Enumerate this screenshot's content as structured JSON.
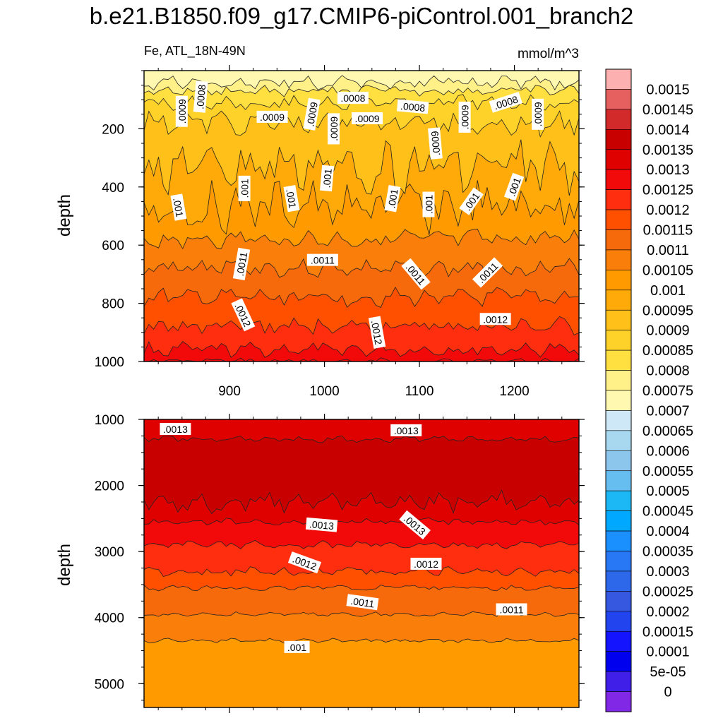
{
  "title": "b.e21.B1850.f09_g17.CMIP6-piControl.001_branch2",
  "variable_label": "Fe, ATL_18N-49N",
  "units_label": "mmol/m^3",
  "chart_data": [
    {
      "type": "heatmap",
      "panel": "upper",
      "ylabel": "depth",
      "xlabel": "",
      "xlim": [
        810,
        1268
      ],
      "ylim": [
        1000,
        0
      ],
      "x_ticks": [
        900,
        1000,
        1100,
        1200
      ],
      "y_ticks": [
        200,
        400,
        600,
        800,
        1000
      ],
      "contour_bands": [
        {
          "depth_boundary": 40,
          "above_value": 0.0007
        },
        {
          "depth_boundary": 70,
          "above_value": 0.00075
        },
        {
          "depth_boundary": 110,
          "above_value": 0.0008
        },
        {
          "depth_boundary": 180,
          "above_value": 0.00085
        },
        {
          "depth_boundary": 330,
          "above_value": 0.0009
        },
        {
          "depth_boundary": 470,
          "above_value": 0.00095
        },
        {
          "depth_boundary": 580,
          "above_value": 0.001
        },
        {
          "depth_boundary": 680,
          "above_value": 0.00105
        },
        {
          "depth_boundary": 780,
          "above_value": 0.0011
        },
        {
          "depth_boundary": 880,
          "above_value": 0.00115
        },
        {
          "depth_boundary": 960,
          "above_value": 0.0012
        },
        {
          "depth_boundary": 1000,
          "above_value": 0.00125
        }
      ],
      "contour_labels": [
        {
          "text": ".0008",
          "x": 870,
          "depth": 90,
          "angle": -85
        },
        {
          "text": ".0009",
          "x": 850,
          "depth": 140,
          "angle": -90
        },
        {
          "text": ".0009",
          "x": 945,
          "depth": 160,
          "angle": 0
        },
        {
          "text": ".0009",
          "x": 987,
          "depth": 150,
          "angle": -80
        },
        {
          "text": ".0008",
          "x": 1030,
          "depth": 95,
          "angle": 0
        },
        {
          "text": ".0009",
          "x": 1010,
          "depth": 200,
          "angle": -90
        },
        {
          "text": ".0009",
          "x": 1045,
          "depth": 165,
          "angle": 0
        },
        {
          "text": ".0008",
          "x": 1093,
          "depth": 125,
          "angle": 5
        },
        {
          "text": ".0009",
          "x": 1117,
          "depth": 250,
          "angle": -95
        },
        {
          "text": ".0009",
          "x": 1148,
          "depth": 160,
          "angle": -90
        },
        {
          "text": ".0008",
          "x": 1191,
          "depth": 110,
          "angle": -18
        },
        {
          "text": ".0009",
          "x": 1225,
          "depth": 150,
          "angle": -90
        },
        {
          "text": ".001",
          "x": 846,
          "depth": 470,
          "angle": 80
        },
        {
          "text": ".001",
          "x": 916,
          "depth": 405,
          "angle": -90
        },
        {
          "text": ".001",
          "x": 965,
          "depth": 440,
          "angle": 80
        },
        {
          "text": ".001",
          "x": 1003,
          "depth": 370,
          "angle": -85
        },
        {
          "text": ".001",
          "x": 1072,
          "depth": 440,
          "angle": -80
        },
        {
          "text": ".001",
          "x": 1110,
          "depth": 460,
          "angle": -90
        },
        {
          "text": ".001",
          "x": 1155,
          "depth": 450,
          "angle": -55
        },
        {
          "text": ".001",
          "x": 1200,
          "depth": 400,
          "angle": -70
        },
        {
          "text": ".0011",
          "x": 913,
          "depth": 665,
          "angle": -80
        },
        {
          "text": ".0011",
          "x": 998,
          "depth": 652,
          "angle": 0
        },
        {
          "text": ".0011",
          "x": 1096,
          "depth": 700,
          "angle": 50
        },
        {
          "text": ".0011",
          "x": 1172,
          "depth": 695,
          "angle": -45
        },
        {
          "text": ".0012",
          "x": 914,
          "depth": 840,
          "angle": 65
        },
        {
          "text": ".0012",
          "x": 1055,
          "depth": 900,
          "angle": 80
        },
        {
          "text": ".0012",
          "x": 1180,
          "depth": 855,
          "angle": 0
        }
      ]
    },
    {
      "type": "heatmap",
      "panel": "lower",
      "ylabel": "depth",
      "xlabel": "",
      "xlim": [
        810,
        1268
      ],
      "ylim": [
        5360,
        1000
      ],
      "x_ticks": [
        900,
        1000,
        1100,
        1200
      ],
      "y_ticks": [
        1000,
        2000,
        3000,
        4000,
        5000
      ],
      "contour_bands": [
        {
          "depth_boundary": 1300,
          "above_value": 0.0013
        },
        {
          "depth_boundary": 2250,
          "above_value": 0.00135
        },
        {
          "depth_boundary": 2550,
          "above_value": 0.0013
        },
        {
          "depth_boundary": 2900,
          "above_value": 0.00125
        },
        {
          "depth_boundary": 3300,
          "above_value": 0.0012
        },
        {
          "depth_boundary": 3550,
          "above_value": 0.00115
        },
        {
          "depth_boundary": 3950,
          "above_value": 0.0011
        },
        {
          "depth_boundary": 4350,
          "above_value": 0.00105
        },
        {
          "depth_boundary": 5360,
          "above_value": 0.001
        }
      ],
      "contour_labels": [
        {
          "text": ".0013",
          "x": 843,
          "depth": 1150,
          "angle": 0
        },
        {
          "text": ".0013",
          "x": 1086,
          "depth": 1170,
          "angle": 0
        },
        {
          "text": ".0013",
          "x": 997,
          "depth": 2600,
          "angle": 5
        },
        {
          "text": ".0013",
          "x": 1095,
          "depth": 2600,
          "angle": 40
        },
        {
          "text": ".0012",
          "x": 979,
          "depth": 3170,
          "angle": 20
        },
        {
          "text": ".0012",
          "x": 1107,
          "depth": 3190,
          "angle": 0
        },
        {
          "text": ".0011",
          "x": 1040,
          "depth": 3770,
          "angle": 8
        },
        {
          "text": ".0011",
          "x": 1197,
          "depth": 3880,
          "angle": 0
        },
        {
          "text": ".001",
          "x": 971,
          "depth": 4450,
          "angle": 0
        }
      ]
    }
  ],
  "colorbar": {
    "labels": [
      "0.0015",
      "0.00145",
      "0.0014",
      "0.00135",
      "0.0013",
      "0.00125",
      "0.0012",
      "0.00115",
      "0.0011",
      "0.00105",
      "0.001",
      "0.00095",
      "0.0009",
      "0.00085",
      "0.0008",
      "0.00075",
      "0.0007",
      "0.00065",
      "0.0006",
      "0.00055",
      "0.0005",
      "0.00045",
      "0.0004",
      "0.00035",
      "0.0003",
      "0.00025",
      "0.0002",
      "0.00015",
      "0.0001",
      "5e-05",
      "0"
    ],
    "colors_top_to_bottom": [
      "#fdb0b0",
      "#e66060",
      "#d22a2a",
      "#c80000",
      "#df0000",
      "#f20a0a",
      "#ff2e0e",
      "#ff5000",
      "#f76a0c",
      "#f97f0a",
      "#ff9a00",
      "#ffaa08",
      "#ffc01a",
      "#ffd22a",
      "#ffe040",
      "#fff088",
      "#fff8b0",
      "#cfe8f7",
      "#a8d8f0",
      "#8cc6ec",
      "#66bdf0",
      "#1cb8f5",
      "#00a8ff",
      "#1a90ff",
      "#2878f5",
      "#2e68ea",
      "#3658e0",
      "#2244ee",
      "#1414ff",
      "#0000ee",
      "#4020e8",
      "#8028e6"
    ]
  }
}
